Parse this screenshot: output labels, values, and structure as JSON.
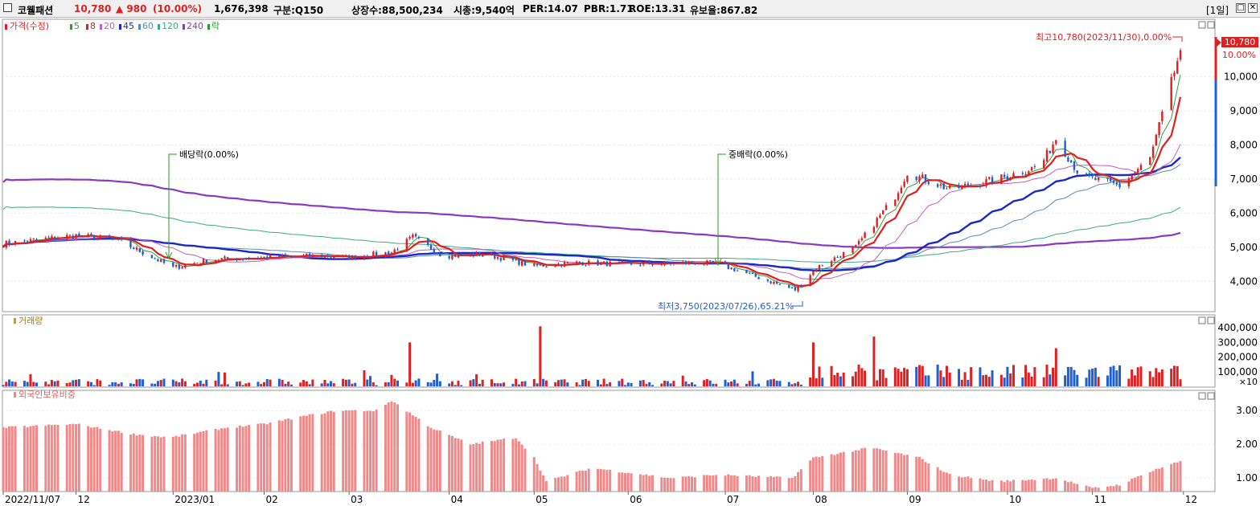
{
  "header": {
    "stock_name": "코웰패션",
    "price": "10,780",
    "change": "▲ 980",
    "change_pct": "(10.00%)",
    "volume": "1,676,398",
    "market": "구분:Q150",
    "shares": "상장수:88,500,234",
    "market_cap": "시총:9,540억",
    "per": "PER:14.07",
    "pbr": "PBR:1.71",
    "roe": "ROE:13.31",
    "reserve": "유보율:867.82",
    "period": "[1일]"
  },
  "colors": {
    "up": "#e02020",
    "down": "#1f5fd0",
    "ma5": "#3a9a3a",
    "ma8": "#e02020",
    "ma20": "#c060c0",
    "ma45": "#1a28c8",
    "ma60": "#5a8ab8",
    "ma120": "#3aaa8a",
    "ma240": "#8a3ac0",
    "foreign": "#f08a8a",
    "arrow_green": "#2a9a2a"
  },
  "legend": {
    "price": "가격(수정)",
    "ma5": "5",
    "ma8": "8",
    "ma20": "20",
    "ma45": "45",
    "ma60": "60",
    "ma120": "120",
    "ma240": "240",
    "ex": "락"
  },
  "chart_data": [
    {
      "type": "candlestick",
      "legend": [
        "가격(수정)",
        "5",
        "8",
        "20",
        "45",
        "60",
        "120",
        "240",
        "락"
      ],
      "y_ticks": [
        "4,000",
        "5,000",
        "6,000",
        "7,000",
        "8,000",
        "9,000",
        "10,000"
      ],
      "y_range": [
        3300,
        11500
      ],
      "x_labels": [
        "2022/11/07",
        "12",
        "2023/01",
        "02",
        "03",
        "04",
        "05",
        "06",
        "07",
        "08",
        "09",
        "10",
        "11",
        "12"
      ],
      "price_path": [
        [
          "2022-11-07",
          5100
        ],
        [
          "2022-12-01",
          5350
        ],
        [
          "2022-12-15",
          5200
        ],
        [
          "2023-01-02",
          4400
        ],
        [
          "2023-01-15",
          4650
        ],
        [
          "2023-02-01",
          4700
        ],
        [
          "2023-02-20",
          4750
        ],
        [
          "2023-03-01",
          4700
        ],
        [
          "2023-03-15",
          4850
        ],
        [
          "2023-03-22",
          5300
        ],
        [
          "2023-04-01",
          4750
        ],
        [
          "2023-04-15",
          4800
        ],
        [
          "2023-05-01",
          4450
        ],
        [
          "2023-05-15",
          4550
        ],
        [
          "2023-06-01",
          4500
        ],
        [
          "2023-06-25",
          4550
        ],
        [
          "2023-07-01",
          4500
        ],
        [
          "2023-07-26",
          3750
        ],
        [
          "2023-08-02",
          4400
        ],
        [
          "2023-08-15",
          5000
        ],
        [
          "2023-08-28",
          6500
        ],
        [
          "2023-09-01",
          7200
        ],
        [
          "2023-09-15",
          6700
        ],
        [
          "2023-10-01",
          7000
        ],
        [
          "2023-10-15",
          7400
        ],
        [
          "2023-10-20",
          8200
        ],
        [
          "2023-10-28",
          7100
        ],
        [
          "2023-11-10",
          6800
        ],
        [
          "2023-11-20",
          7600
        ],
        [
          "2023-11-30",
          10780
        ]
      ],
      "annotations": {
        "high": "최고10,780(2023/11/30),0.00%",
        "low": "최저3,750(2023/07/26),65.21%",
        "dividend": "배당락(0.00%)",
        "bonus": "중배락(0.00%)"
      },
      "current_price": "10,780",
      "current_pct": "10.00%"
    },
    {
      "type": "bar",
      "title": "거래량",
      "y_ticks": [
        "100,000",
        "200,000",
        "300,000",
        "400,000"
      ],
      "y_unit": "×10",
      "notable_peaks": [
        [
          "2023-03-21",
          300000
        ],
        [
          "2023-05-03",
          410000
        ],
        [
          "2023-08-01",
          300000
        ],
        [
          "2023-08-21",
          340000
        ],
        [
          "2023-10-20",
          260000
        ]
      ]
    },
    {
      "type": "bar",
      "title": "외국인보유비중",
      "y_ticks": [
        "1.00",
        "2.00",
        "3.00"
      ],
      "y_range": [
        0.6,
        3.6
      ],
      "path": [
        [
          "2022-11-07",
          2.5
        ],
        [
          "2022-12-01",
          2.6
        ],
        [
          "2022-12-20",
          2.3
        ],
        [
          "2023-01-01",
          2.2
        ],
        [
          "2023-01-20",
          2.5
        ],
        [
          "2023-02-01",
          2.6
        ],
        [
          "2023-02-15",
          2.85
        ],
        [
          "2023-02-25",
          3.0
        ],
        [
          "2023-03-10",
          3.0
        ],
        [
          "2023-03-15",
          3.3
        ],
        [
          "2023-03-28",
          2.5
        ],
        [
          "2023-04-10",
          2.0
        ],
        [
          "2023-04-25",
          2.2
        ],
        [
          "2023-05-01",
          1.6
        ],
        [
          "2023-05-05",
          0.9
        ],
        [
          "2023-05-20",
          1.3
        ],
        [
          "2023-06-15",
          1.0
        ],
        [
          "2023-07-01",
          1.1
        ],
        [
          "2023-07-25",
          1.0
        ],
        [
          "2023-08-01",
          1.6
        ],
        [
          "2023-08-20",
          1.9
        ],
        [
          "2023-09-05",
          1.6
        ],
        [
          "2023-09-15",
          1.1
        ],
        [
          "2023-10-01",
          0.9
        ],
        [
          "2023-10-20",
          1.0
        ],
        [
          "2023-11-01",
          0.7
        ],
        [
          "2023-11-10",
          0.8
        ],
        [
          "2023-11-20",
          1.2
        ],
        [
          "2023-11-30",
          1.5
        ]
      ]
    }
  ]
}
